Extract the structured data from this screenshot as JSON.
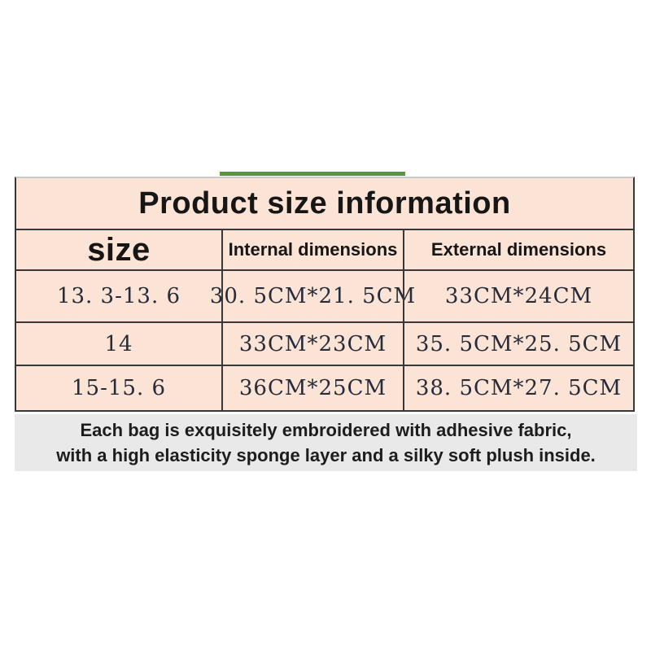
{
  "colors": {
    "accent_green": "#56972f",
    "table_bg": "#fbe3d5",
    "note_bg": "#e9e9e9",
    "border": "#383838",
    "value_text": "#262b3a"
  },
  "table": {
    "title": "Product size information",
    "headers": [
      "size",
      "Internal dimensions",
      "External dimensions"
    ],
    "rows": [
      [
        "13. 3-13. 6",
        "30. 5CM*21. 5CM",
        "33CM*24CM"
      ],
      [
        "14",
        "33CM*23CM",
        "35. 5CM*25. 5CM"
      ],
      [
        "15-15. 6",
        "36CM*25CM",
        "38. 5CM*27. 5CM"
      ]
    ]
  },
  "footer": {
    "line1": "Each bag is exquisitely embroidered with adhesive fabric,",
    "line2": "with a high elasticity sponge layer and a silky soft plush inside."
  }
}
